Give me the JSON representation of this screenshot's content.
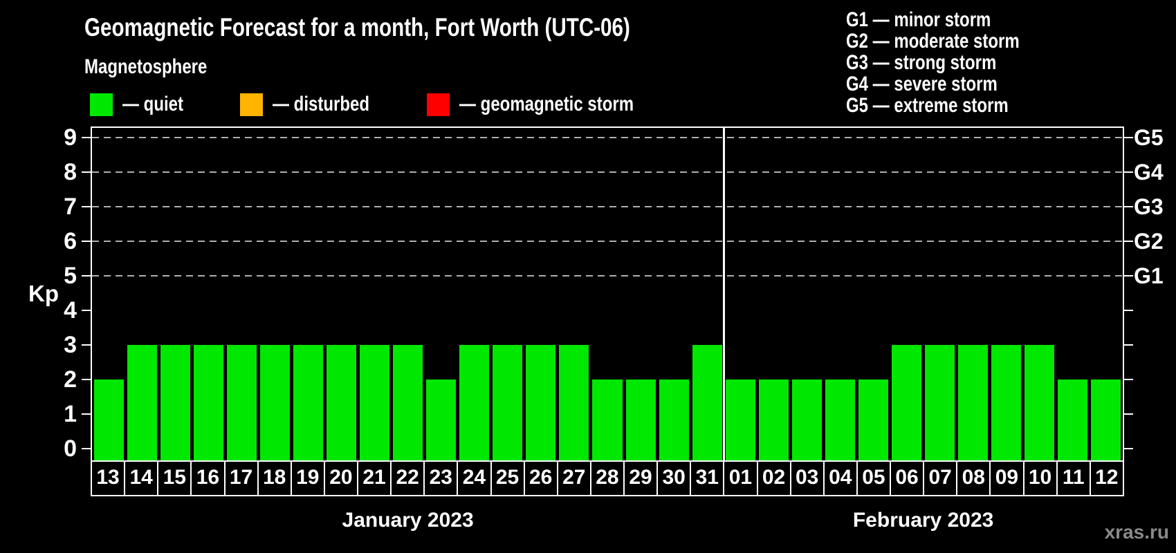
{
  "title": "Geomagnetic Forecast for a month, Fort Worth (UTC-06)",
  "subtitle": "Magnetosphere",
  "legend": {
    "items": [
      {
        "name": "quiet",
        "label": "— quiet",
        "color": "#00e800"
      },
      {
        "name": "disturbed",
        "label": "— disturbed",
        "color": "#ffb400"
      },
      {
        "name": "geomagnetic-storm",
        "label": "— geomagnetic storm",
        "color": "#ff0000"
      }
    ]
  },
  "storm_scale_legend": {
    "items": [
      "G1 — minor storm",
      "G2 — moderate storm",
      "G3 — strong storm",
      "G4 — severe storm",
      "G5 — extreme storm"
    ]
  },
  "watermark": "xras.ru",
  "chart_data": {
    "type": "bar",
    "ylabel": "Kp",
    "ylim": [
      -0.34,
      9.36
    ],
    "yticks": [
      0,
      1,
      2,
      3,
      4,
      5,
      6,
      7,
      8,
      9
    ],
    "gridlines_at": [
      5,
      6,
      7,
      8,
      9
    ],
    "grid_on": true,
    "legend_position": "top",
    "right_axis_labels": [
      {
        "kp": 5,
        "label": "G1"
      },
      {
        "kp": 6,
        "label": "G2"
      },
      {
        "kp": 7,
        "label": "G3"
      },
      {
        "kp": 8,
        "label": "G4"
      },
      {
        "kp": 9,
        "label": "G5"
      }
    ],
    "bar_colors": {
      "quiet": "#00e800",
      "disturbed": "#ffb400",
      "storm": "#ff0000"
    },
    "color_rule": {
      "quiet_max": 3,
      "disturbed_max": 4
    },
    "months": [
      {
        "label": "January 2023",
        "days": [
          "13",
          "14",
          "15",
          "16",
          "17",
          "18",
          "19",
          "20",
          "21",
          "22",
          "23",
          "24",
          "25",
          "26",
          "27",
          "28",
          "29",
          "30",
          "31"
        ],
        "values": [
          2,
          3,
          3,
          3,
          3,
          3,
          3,
          3,
          3,
          3,
          2,
          3,
          3,
          3,
          3,
          2,
          2,
          2,
          3
        ]
      },
      {
        "label": "February 2023",
        "days": [
          "01",
          "02",
          "03",
          "04",
          "05",
          "06",
          "07",
          "08",
          "09",
          "10",
          "11",
          "12"
        ],
        "values": [
          2,
          2,
          2,
          2,
          2,
          3,
          3,
          3,
          3,
          3,
          2,
          2
        ]
      }
    ]
  }
}
